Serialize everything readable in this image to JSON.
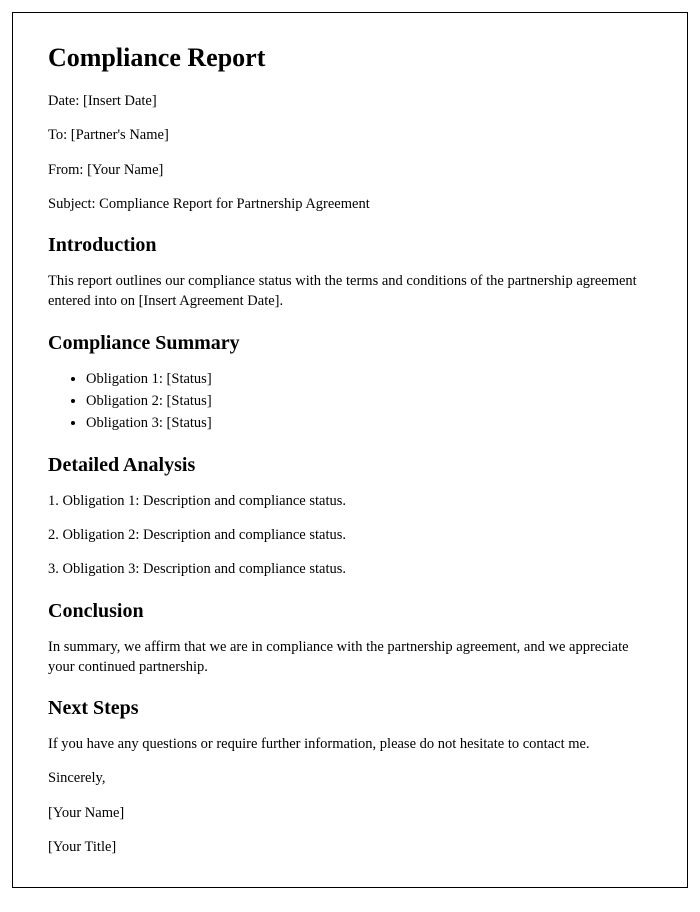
{
  "title": "Compliance Report",
  "meta": {
    "date": "Date: [Insert Date]",
    "to": "To: [Partner's Name]",
    "from": "From: [Your Name]",
    "subject": "Subject: Compliance Report for Partnership Agreement"
  },
  "sections": {
    "introduction": {
      "heading": "Introduction",
      "body": "This report outlines our compliance status with the terms and conditions of the partnership agreement entered into on [Insert Agreement Date]."
    },
    "summary": {
      "heading": "Compliance Summary",
      "items": [
        "Obligation 1: [Status]",
        "Obligation 2: [Status]",
        "Obligation 3: [Status]"
      ]
    },
    "analysis": {
      "heading": "Detailed Analysis",
      "items": [
        "1. Obligation 1: Description and compliance status.",
        "2. Obligation 2: Description and compliance status.",
        "3. Obligation 3: Description and compliance status."
      ]
    },
    "conclusion": {
      "heading": "Conclusion",
      "body": "In summary, we affirm that we are in compliance with the partnership agreement, and we appreciate your continued partnership."
    },
    "nextsteps": {
      "heading": "Next Steps",
      "body": "If you have any questions or require further information, please do not hesitate to contact me."
    }
  },
  "closing": {
    "sincerely": "Sincerely,",
    "name": "[Your Name]",
    "title": "[Your Title]"
  }
}
